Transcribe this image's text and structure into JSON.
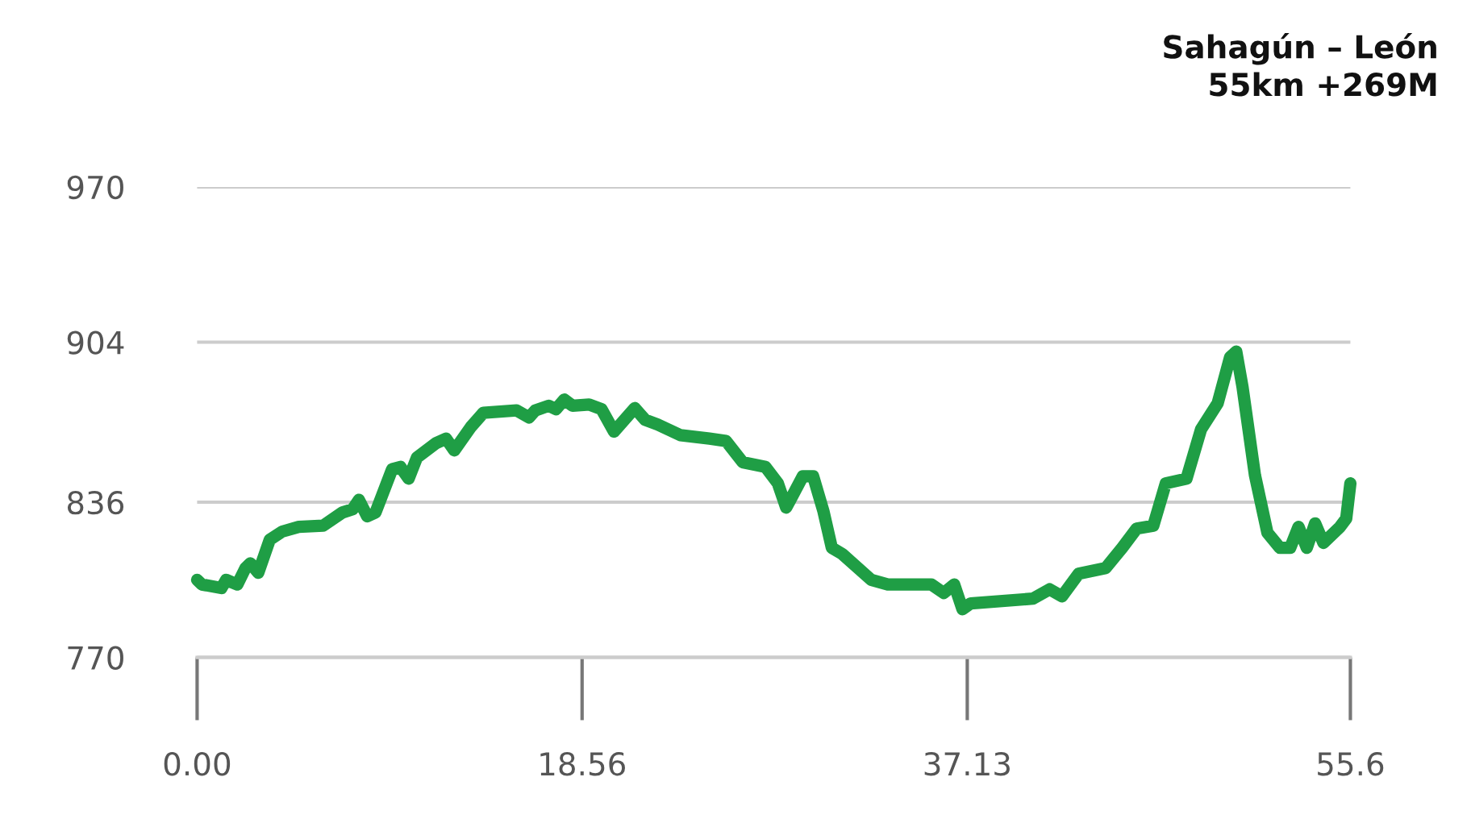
{
  "chart_data": {
    "type": "line",
    "title": "Sahagún – León\n55km +269M",
    "series": [
      {
        "color": "#1f9e45",
        "x": [
          0,
          0.23,
          1.17,
          1.4,
          1.94,
          2.33,
          2.57,
          2.95,
          3.5,
          4.1,
          4.9,
          6.07,
          7.0,
          7.5,
          7.8,
          8.2,
          8.6,
          9.4,
          9.8,
          10.2,
          10.6,
          11.5,
          12.0,
          12.4,
          13.2,
          13.8,
          15.4,
          16.0,
          16.3,
          16.95,
          17.3,
          17.7,
          18.1,
          18.9,
          19.5,
          20.1,
          21.1,
          21.6,
          22.2,
          23.3,
          24.7,
          25.5,
          26.3,
          27.4,
          28.0,
          28.4,
          28.6,
          29.2,
          29.7,
          30.2,
          30.6,
          31.1,
          32.5,
          33.3,
          35.4,
          36.0,
          36.5,
          36.9,
          37.3,
          40.3,
          41.1,
          41.7,
          42.5,
          43.8,
          44.6,
          45.3,
          46.1,
          46.7,
          47.7,
          48.4,
          49.2,
          49.8,
          50.1,
          50.4,
          51.0,
          51.6,
          52.2,
          52.7,
          53.1,
          53.5,
          53.9,
          54.3,
          55.1,
          55.4,
          55.6
        ],
        "values": [
          803,
          801,
          799.5,
          803,
          801,
          808,
          810,
          806,
          820,
          823.5,
          825.5,
          826,
          831.6,
          833,
          837,
          830,
          831.6,
          850,
          851,
          846,
          855,
          861,
          863,
          858,
          868,
          874,
          875,
          872,
          875,
          877,
          875.5,
          879.6,
          877,
          877.5,
          875.5,
          866,
          876,
          871,
          869,
          864.5,
          863,
          862,
          853,
          851,
          844,
          833.7,
          837,
          847,
          847,
          832,
          816.6,
          814,
          803,
          801,
          801,
          797.4,
          801,
          790.5,
          793,
          795,
          799,
          796,
          805.6,
          808,
          816.6,
          824.8,
          826,
          844,
          846,
          867,
          878,
          897.6,
          900,
          885,
          847.4,
          823,
          816.6,
          816.6,
          825.5,
          816.6,
          827,
          818.7,
          825.5,
          829,
          844
        ]
      }
    ],
    "xlim": [
      0,
      55.6
    ],
    "xticks": [
      {
        "value": 0,
        "label": "0.00"
      },
      18.56,
      37.13,
      55.6
    ],
    "ylim": [
      770,
      970
    ],
    "yticks": [
      770,
      836,
      904,
      970
    ],
    "grid": "y"
  }
}
